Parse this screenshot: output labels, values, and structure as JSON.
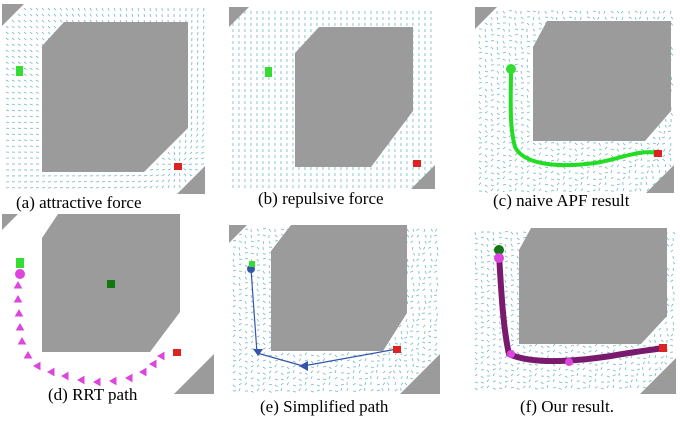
{
  "figure": {
    "panels": [
      {
        "id": "a",
        "caption": "(a) attractive force",
        "field": "attractive"
      },
      {
        "id": "b",
        "caption": "(b) repulsive force",
        "field": "repulsive"
      },
      {
        "id": "c",
        "caption": "(c) naive APF result",
        "field": "mixed"
      },
      {
        "id": "d",
        "caption": "(d) RRT path",
        "field": "none"
      },
      {
        "id": "e",
        "caption": "(e) Simplified path",
        "field": "mixed"
      },
      {
        "id": "f",
        "caption": "(f) Our result.",
        "field": "mixed"
      }
    ],
    "colors": {
      "obstacle": "#9b9b9b",
      "arrow": "#6fb8c4",
      "start": "#33dd33",
      "goal": "#dd2222",
      "apf_path": "#22dd22",
      "rrt_marker": "#dd44dd",
      "rrt_node": "#117711",
      "simplified_path": "#3355aa",
      "our_path": "#7a1a6e"
    }
  }
}
